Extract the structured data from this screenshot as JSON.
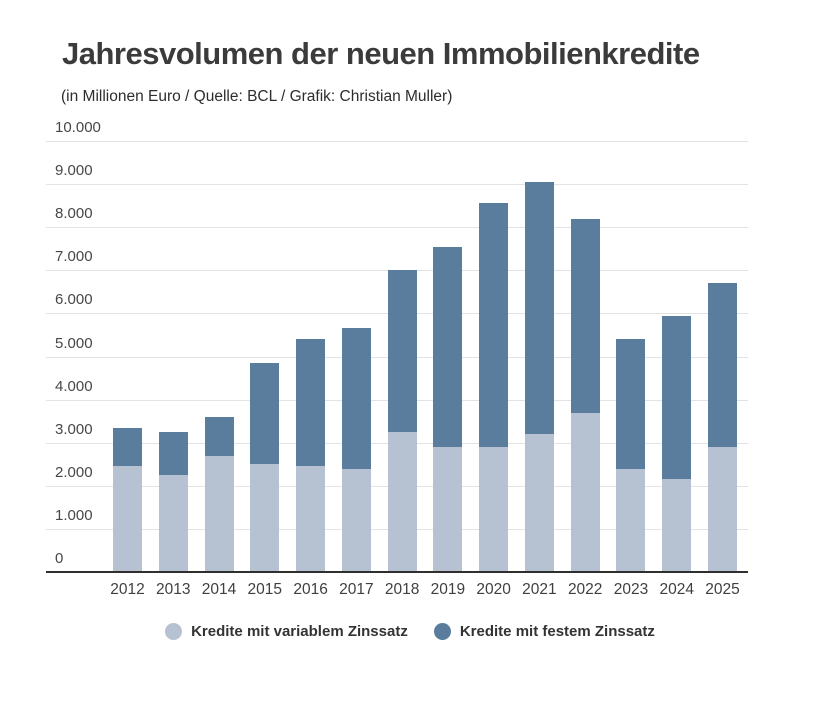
{
  "header": {
    "title": "Jahresvolumen der neuen Immobilienkredite",
    "subtitle": "(in Millionen Euro / Quelle: BCL / Grafik: Christian Muller)"
  },
  "chart_data": {
    "type": "bar",
    "stacked": true,
    "title": "Jahresvolumen der neuen Immobilienkredite",
    "subtitle": "(in Millionen Euro / Quelle: BCL / Grafik: Christian Muller)",
    "unit": "Millionen Euro",
    "categories": [
      "2012",
      "2013",
      "2014",
      "2015",
      "2016",
      "2017",
      "2018",
      "2019",
      "2020",
      "2021",
      "2022",
      "2023",
      "2024",
      "2025"
    ],
    "series": [
      {
        "name": "Kredite mit variablem Zinssatz",
        "color": "#b6c2d2",
        "values": [
          2450,
          2250,
          2700,
          2500,
          2450,
          2400,
          3250,
          2900,
          2900,
          3200,
          3700,
          2400,
          2150,
          2900
        ]
      },
      {
        "name": "Kredite mit festem Zinssatz",
        "color": "#5a7c9d",
        "values": [
          900,
          1000,
          900,
          2350,
          2950,
          3250,
          3750,
          4650,
          5650,
          5850,
          4500,
          3000,
          3800,
          3800
        ]
      }
    ],
    "totals": [
      3350,
      3250,
      3600,
      4850,
      5400,
      5650,
      7000,
      7550,
      8550,
      9050,
      8200,
      5400,
      5950,
      6700
    ],
    "xlabel": "",
    "ylabel": "",
    "ylim": [
      0,
      10000
    ],
    "grid": true,
    "legend_position": "bottom",
    "y_ticks": [
      {
        "value": 0,
        "label": "0"
      },
      {
        "value": 1000,
        "label": "1.000"
      },
      {
        "value": 2000,
        "label": "2.000"
      },
      {
        "value": 3000,
        "label": "3.000"
      },
      {
        "value": 4000,
        "label": "4.000"
      },
      {
        "value": 5000,
        "label": "5.000"
      },
      {
        "value": 6000,
        "label": "6.000"
      },
      {
        "value": 7000,
        "label": "7.000"
      },
      {
        "value": 8000,
        "label": "8.000"
      },
      {
        "value": 9000,
        "label": "9.000"
      },
      {
        "value": 10000,
        "label": "10.000"
      }
    ]
  },
  "colors": {
    "background": "#ffffff",
    "variable_rate": "#b6c2d2",
    "fixed_rate": "#5a7c9d",
    "gridline": "#e3e3e3",
    "axis_line": "#2f2f2f",
    "title_text": "#3b3b3b"
  }
}
